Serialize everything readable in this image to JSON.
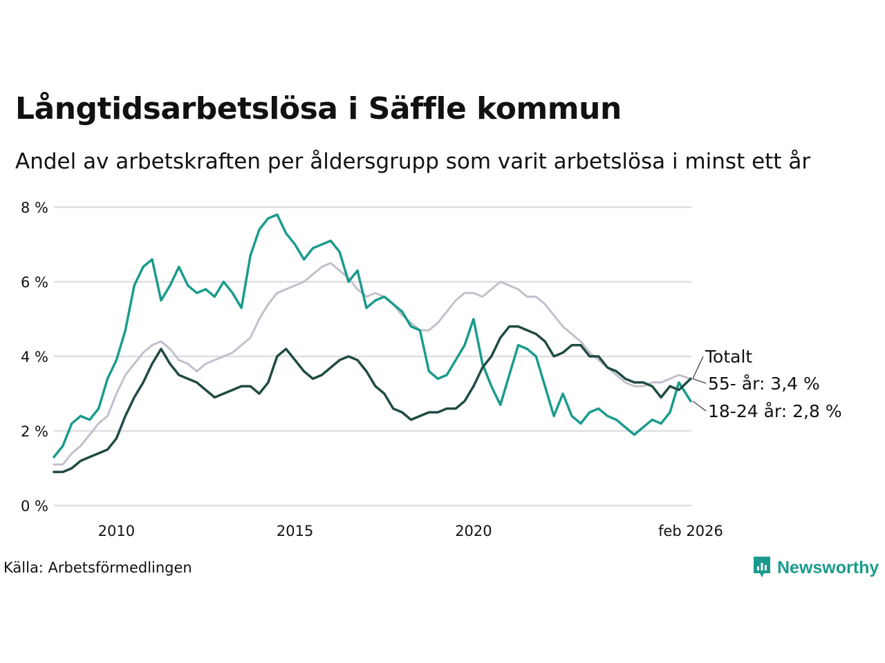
{
  "header": {
    "title": "Långtidsarbetslösa i Säffle kommun",
    "subtitle": "Andel av arbetskraften per åldersgrupp som varit arbetslösa i minst ett år"
  },
  "footer": {
    "source": "Källa: Arbetsförmedlingen",
    "brand": "Newsworthy"
  },
  "colors": {
    "totalt": "#c2bfcb",
    "young": "#1a9b8d",
    "old": "#1f4b43",
    "grid": "#dfdfe3"
  },
  "chart_data": {
    "type": "line",
    "title": "Långtidsarbetslösa i Säffle kommun",
    "xlabel": "",
    "ylabel": "",
    "xlim": [
      2008.25,
      2026.1
    ],
    "ylim": [
      0,
      8
    ],
    "yticks": [
      0,
      2,
      4,
      6,
      8
    ],
    "ytick_labels": [
      "0 %",
      "2 %",
      "4 %",
      "6 %",
      "8 %"
    ],
    "xticks": [
      2010,
      2015,
      2020,
      2026.08
    ],
    "xtick_labels": [
      "2010",
      "2015",
      "2020",
      "feb 2026"
    ],
    "series": [
      {
        "name": "Totalt",
        "label": "Totalt",
        "color": "#c2bfcb",
        "x": [
          2008.25,
          2008.5,
          2008.75,
          2009.0,
          2009.25,
          2009.5,
          2009.75,
          2010.0,
          2010.25,
          2010.5,
          2010.75,
          2011.0,
          2011.25,
          2011.5,
          2011.75,
          2012.0,
          2012.25,
          2012.5,
          2012.75,
          2013.0,
          2013.25,
          2013.5,
          2013.75,
          2014.0,
          2014.25,
          2014.5,
          2014.75,
          2015.0,
          2015.25,
          2015.5,
          2015.75,
          2016.0,
          2016.25,
          2016.5,
          2016.75,
          2017.0,
          2017.25,
          2017.5,
          2017.75,
          2018.0,
          2018.25,
          2018.5,
          2018.75,
          2019.0,
          2019.25,
          2019.5,
          2019.75,
          2020.0,
          2020.25,
          2020.5,
          2020.75,
          2021.0,
          2021.25,
          2021.5,
          2021.75,
          2022.0,
          2022.25,
          2022.5,
          2022.75,
          2023.0,
          2023.25,
          2023.5,
          2023.75,
          2024.0,
          2024.25,
          2024.5,
          2024.75,
          2025.0,
          2025.25,
          2025.5,
          2025.75,
          2026.08
        ],
        "values": [
          1.1,
          1.1,
          1.4,
          1.6,
          1.9,
          2.2,
          2.4,
          3.0,
          3.5,
          3.8,
          4.1,
          4.3,
          4.4,
          4.2,
          3.9,
          3.8,
          3.6,
          3.8,
          3.9,
          4.0,
          4.1,
          4.3,
          4.5,
          5.0,
          5.4,
          5.7,
          5.8,
          5.9,
          6.0,
          6.2,
          6.4,
          6.5,
          6.3,
          6.1,
          5.8,
          5.6,
          5.7,
          5.6,
          5.4,
          5.1,
          4.9,
          4.7,
          4.7,
          4.9,
          5.2,
          5.5,
          5.7,
          5.7,
          5.6,
          5.8,
          6.0,
          5.9,
          5.8,
          5.6,
          5.6,
          5.4,
          5.1,
          4.8,
          4.6,
          4.4,
          4.1,
          3.9,
          3.7,
          3.5,
          3.3,
          3.2,
          3.2,
          3.3,
          3.3,
          3.4,
          3.5,
          3.4
        ]
      },
      {
        "name": "18-24 år",
        "label": "18-24 år: 2,8 %",
        "color": "#1a9b8d",
        "x": [
          2008.25,
          2008.5,
          2008.75,
          2009.0,
          2009.25,
          2009.5,
          2009.75,
          2010.0,
          2010.25,
          2010.5,
          2010.75,
          2011.0,
          2011.25,
          2011.5,
          2011.75,
          2012.0,
          2012.25,
          2012.5,
          2012.75,
          2013.0,
          2013.25,
          2013.5,
          2013.75,
          2014.0,
          2014.25,
          2014.5,
          2014.75,
          2015.0,
          2015.25,
          2015.5,
          2015.75,
          2016.0,
          2016.25,
          2016.5,
          2016.75,
          2017.0,
          2017.25,
          2017.5,
          2017.75,
          2018.0,
          2018.25,
          2018.5,
          2018.75,
          2019.0,
          2019.25,
          2019.5,
          2019.75,
          2020.0,
          2020.25,
          2020.5,
          2020.75,
          2021.0,
          2021.25,
          2021.5,
          2021.75,
          2022.0,
          2022.25,
          2022.5,
          2022.75,
          2023.0,
          2023.25,
          2023.5,
          2023.75,
          2024.0,
          2024.25,
          2024.5,
          2024.75,
          2025.0,
          2025.25,
          2025.5,
          2025.75,
          2026.08
        ],
        "values": [
          1.3,
          1.6,
          2.2,
          2.4,
          2.3,
          2.6,
          3.4,
          3.9,
          4.7,
          5.9,
          6.4,
          6.6,
          5.5,
          5.9,
          6.4,
          5.9,
          5.7,
          5.8,
          5.6,
          6.0,
          5.7,
          5.3,
          6.7,
          7.4,
          7.7,
          7.8,
          7.3,
          7.0,
          6.6,
          6.9,
          7.0,
          7.1,
          6.8,
          6.0,
          6.3,
          5.3,
          5.5,
          5.6,
          5.4,
          5.2,
          4.8,
          4.7,
          3.6,
          3.4,
          3.5,
          3.9,
          4.3,
          5.0,
          3.8,
          3.2,
          2.7,
          3.5,
          4.3,
          4.2,
          4.0,
          3.2,
          2.4,
          3.0,
          2.4,
          2.2,
          2.5,
          2.6,
          2.4,
          2.3,
          2.1,
          1.9,
          2.1,
          2.3,
          2.2,
          2.5,
          3.3,
          2.8
        ]
      },
      {
        "name": "55- år",
        "label": "55- år: 3,4 %",
        "color": "#1f4b43",
        "x": [
          2008.25,
          2008.5,
          2008.75,
          2009.0,
          2009.25,
          2009.5,
          2009.75,
          2010.0,
          2010.25,
          2010.5,
          2010.75,
          2011.0,
          2011.25,
          2011.5,
          2011.75,
          2012.0,
          2012.25,
          2012.5,
          2012.75,
          2013.0,
          2013.25,
          2013.5,
          2013.75,
          2014.0,
          2014.25,
          2014.5,
          2014.75,
          2015.0,
          2015.25,
          2015.5,
          2015.75,
          2016.0,
          2016.25,
          2016.5,
          2016.75,
          2017.0,
          2017.25,
          2017.5,
          2017.75,
          2018.0,
          2018.25,
          2018.5,
          2018.75,
          2019.0,
          2019.25,
          2019.5,
          2019.75,
          2020.0,
          2020.25,
          2020.5,
          2020.75,
          2021.0,
          2021.25,
          2021.5,
          2021.75,
          2022.0,
          2022.25,
          2022.5,
          2022.75,
          2023.0,
          2023.25,
          2023.5,
          2023.75,
          2024.0,
          2024.25,
          2024.5,
          2024.75,
          2025.0,
          2025.25,
          2025.5,
          2025.75,
          2026.08
        ],
        "values": [
          0.9,
          0.9,
          1.0,
          1.2,
          1.3,
          1.4,
          1.5,
          1.8,
          2.4,
          2.9,
          3.3,
          3.8,
          4.2,
          3.8,
          3.5,
          3.4,
          3.3,
          3.1,
          2.9,
          3.0,
          3.1,
          3.2,
          3.2,
          3.0,
          3.3,
          4.0,
          4.2,
          3.9,
          3.6,
          3.4,
          3.5,
          3.7,
          3.9,
          4.0,
          3.9,
          3.6,
          3.2,
          3.0,
          2.6,
          2.5,
          2.3,
          2.4,
          2.5,
          2.5,
          2.6,
          2.6,
          2.8,
          3.2,
          3.7,
          4.0,
          4.5,
          4.8,
          4.8,
          4.7,
          4.6,
          4.4,
          4.0,
          4.1,
          4.3,
          4.3,
          4.0,
          4.0,
          3.7,
          3.6,
          3.4,
          3.3,
          3.3,
          3.2,
          2.9,
          3.2,
          3.1,
          3.4
        ]
      }
    ]
  }
}
